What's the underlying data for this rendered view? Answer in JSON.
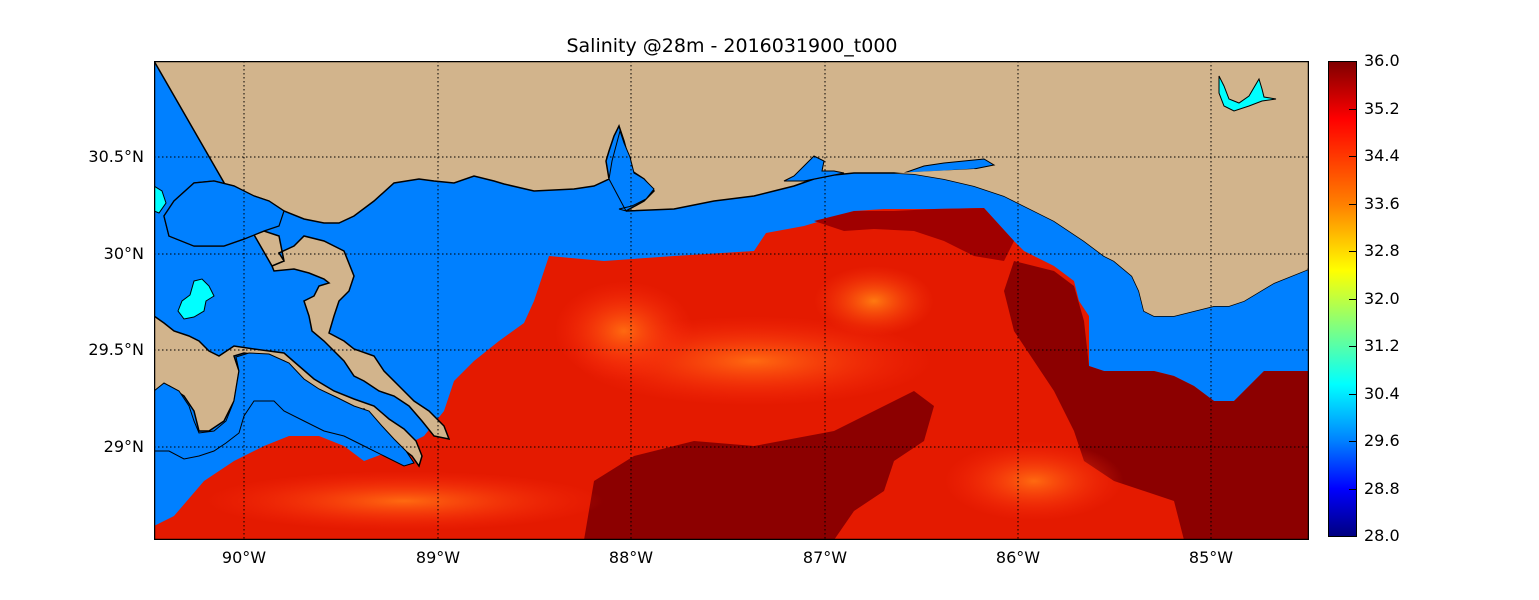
{
  "title": "Salinity @28m - 2016031900_t000",
  "map": {
    "lon_range": [
      -90.5,
      -84.5
    ],
    "lat_range": [
      28.53,
      31.0
    ],
    "land_color": "#d2b48c",
    "shelf_water_color": "#0080ff",
    "lake_color": "#00ffff",
    "grid": true
  },
  "x_ticks": [
    "90°W",
    "89°W",
    "88°W",
    "87°W",
    "86°W",
    "85°W"
  ],
  "y_ticks": [
    "30.5°N",
    "30°N",
    "29.5°N",
    "29°N"
  ],
  "colorbar": {
    "colormap": "jet",
    "vmin": 28.0,
    "vmax": 36.0,
    "ticks": [
      "36.0",
      "35.2",
      "34.4",
      "33.6",
      "32.8",
      "32.0",
      "31.2",
      "30.4",
      "29.6",
      "28.8",
      "28.0"
    ]
  }
}
